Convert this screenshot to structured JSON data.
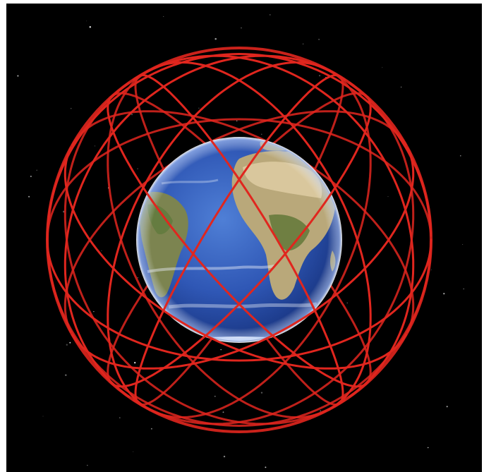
{
  "colors": {
    "background": "#000000",
    "orbit": "#e0261e",
    "orbit_highlight": "#ff3b2f",
    "ocean": "#2f57b5",
    "ocean_deep": "#1b3a8f",
    "land": "#8a8a55",
    "land_light": "#c9b98a",
    "desert": "#d8c49a",
    "cloud": "#e8eef8"
  },
  "icons": {
    "earth": "earth-globe-icon",
    "orbits": "satellite-orbit-tracks-icon",
    "stars": "starfield-icon"
  }
}
